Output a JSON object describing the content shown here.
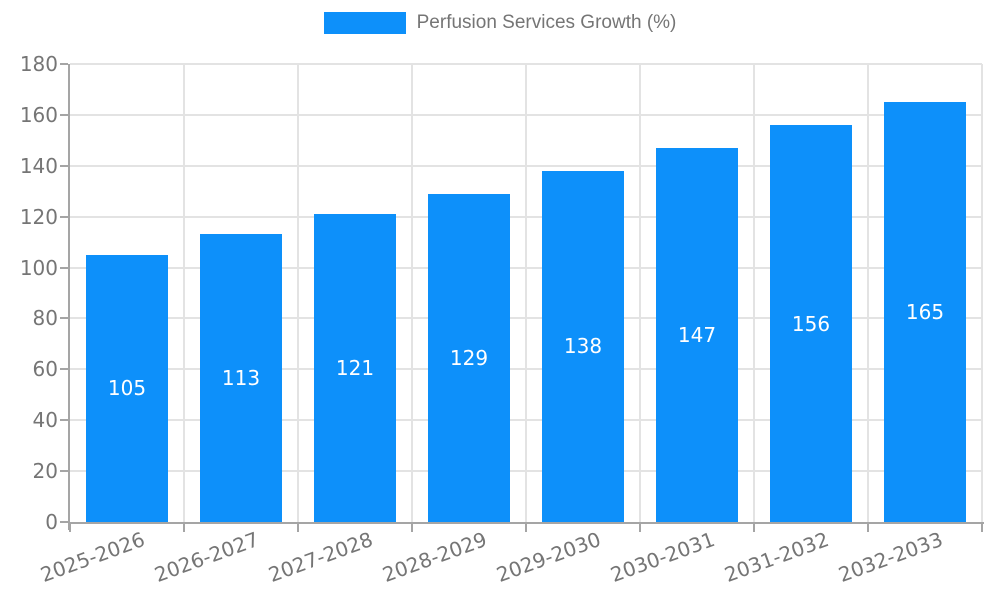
{
  "legend": {
    "label": "Perfusion Services Growth (%)"
  },
  "chart_data": {
    "type": "bar",
    "title": "",
    "series_name": "Perfusion Services Growth (%)",
    "categories": [
      "2025-2026",
      "2026-2027",
      "2027-2028",
      "2028-2029",
      "2029-2030",
      "2030-2031",
      "2031-2032",
      "2032-2033"
    ],
    "values": [
      105,
      113,
      121,
      129,
      138,
      147,
      156,
      165
    ],
    "value_labels_shown": true,
    "xlabel": "",
    "ylabel": "",
    "ylim": [
      0,
      180
    ],
    "ytick_step": 20,
    "yticks": [
      0,
      20,
      40,
      60,
      80,
      100,
      120,
      140,
      160,
      180
    ],
    "grid": true,
    "legend_position": "top",
    "x_label_rotation_deg": -20,
    "colors": {
      "bar": "#0d90fa",
      "grid": "#e3e3e3",
      "axis": "#a5a5a5",
      "tick_text": "#757575",
      "value_text": "#ffffff"
    }
  }
}
